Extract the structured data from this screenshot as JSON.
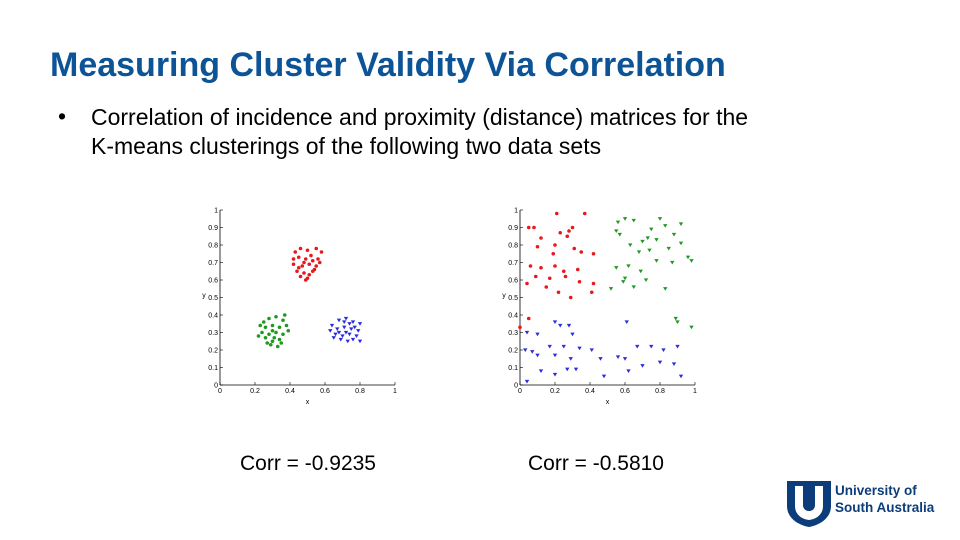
{
  "slide": {
    "title": "Measuring Cluster Validity Via Correlation",
    "bullet_symbol": "•",
    "bullet_lines": [
      "Correlation of incidence and proximity (distance) matrices for the",
      "K-means clusterings of the following two data sets"
    ],
    "corr_left": "Corr = -0.9235",
    "corr_right": "Corr = -0.5810"
  },
  "logo": {
    "line1": "University of",
    "line2": "South Australia",
    "color": "#0d3c7a"
  },
  "chart_data": [
    {
      "type": "scatter",
      "xlabel": "x",
      "ylabel": "y",
      "xlim": [
        0,
        1
      ],
      "ylim": [
        0,
        1
      ],
      "xticks": [
        "0",
        "0.2",
        "0.4",
        "0.6",
        "0.8",
        "1"
      ],
      "yticks": [
        "0",
        "0.1",
        "0.2",
        "0.3",
        "0.4",
        "0.5",
        "0.6",
        "0.7",
        "0.8",
        "0.9",
        "1"
      ],
      "series": [
        {
          "color": "#e8191c",
          "marker": "dot",
          "points": [
            [
              0.43,
              0.76
            ],
            [
              0.46,
              0.78
            ],
            [
              0.5,
              0.77
            ],
            [
              0.55,
              0.78
            ],
            [
              0.58,
              0.76
            ],
            [
              0.45,
              0.73
            ],
            [
              0.49,
              0.72
            ],
            [
              0.52,
              0.74
            ],
            [
              0.56,
              0.72
            ],
            [
              0.42,
              0.69
            ],
            [
              0.47,
              0.68
            ],
            [
              0.51,
              0.69
            ],
            [
              0.55,
              0.68
            ],
            [
              0.44,
              0.65
            ],
            [
              0.48,
              0.64
            ],
            [
              0.53,
              0.65
            ],
            [
              0.46,
              0.62
            ],
            [
              0.5,
              0.61
            ],
            [
              0.42,
              0.72
            ],
            [
              0.57,
              0.7
            ],
            [
              0.48,
              0.7
            ],
            [
              0.53,
              0.71
            ],
            [
              0.45,
              0.67
            ],
            [
              0.51,
              0.63
            ],
            [
              0.49,
              0.6
            ],
            [
              0.54,
              0.66
            ]
          ]
        },
        {
          "color": "#1f9a1f",
          "marker": "dot",
          "points": [
            [
              0.25,
              0.36
            ],
            [
              0.28,
              0.38
            ],
            [
              0.32,
              0.39
            ],
            [
              0.36,
              0.37
            ],
            [
              0.26,
              0.33
            ],
            [
              0.3,
              0.34
            ],
            [
              0.34,
              0.33
            ],
            [
              0.38,
              0.34
            ],
            [
              0.24,
              0.3
            ],
            [
              0.28,
              0.29
            ],
            [
              0.32,
              0.3
            ],
            [
              0.36,
              0.29
            ],
            [
              0.26,
              0.27
            ],
            [
              0.3,
              0.25
            ],
            [
              0.34,
              0.26
            ],
            [
              0.29,
              0.23
            ],
            [
              0.33,
              0.22
            ],
            [
              0.22,
              0.28
            ],
            [
              0.39,
              0.31
            ],
            [
              0.27,
              0.24
            ],
            [
              0.35,
              0.24
            ],
            [
              0.31,
              0.27
            ],
            [
              0.23,
              0.34
            ],
            [
              0.37,
              0.4
            ],
            [
              0.3,
              0.31
            ]
          ]
        },
        {
          "color": "#2c2ce0",
          "marker": "triangle",
          "points": [
            [
              0.64,
              0.34
            ],
            [
              0.68,
              0.37
            ],
            [
              0.72,
              0.38
            ],
            [
              0.76,
              0.36
            ],
            [
              0.8,
              0.35
            ],
            [
              0.63,
              0.31
            ],
            [
              0.67,
              0.32
            ],
            [
              0.71,
              0.33
            ],
            [
              0.75,
              0.32
            ],
            [
              0.79,
              0.31
            ],
            [
              0.66,
              0.29
            ],
            [
              0.7,
              0.28
            ],
            [
              0.74,
              0.29
            ],
            [
              0.78,
              0.28
            ],
            [
              0.69,
              0.26
            ],
            [
              0.73,
              0.25
            ],
            [
              0.8,
              0.25
            ],
            [
              0.65,
              0.27
            ],
            [
              0.77,
              0.33
            ],
            [
              0.71,
              0.36
            ],
            [
              0.74,
              0.35
            ],
            [
              0.68,
              0.3
            ],
            [
              0.76,
              0.26
            ],
            [
              0.72,
              0.3
            ]
          ]
        }
      ]
    },
    {
      "type": "scatter",
      "xlabel": "x",
      "ylabel": "y",
      "xlim": [
        0,
        1
      ],
      "ylim": [
        0,
        1
      ],
      "xticks": [
        "0",
        "0.2",
        "0.4",
        "0.6",
        "0.8",
        "1"
      ],
      "yticks": [
        "0",
        "0.1",
        "0.2",
        "0.3",
        "0.4",
        "0.5",
        "0.6",
        "0.7",
        "0.8",
        "0.9",
        "1"
      ],
      "series": [
        {
          "color": "#e8191c",
          "marker": "dot",
          "points": [
            [
              0.05,
              0.9
            ],
            [
              0.08,
              0.9
            ],
            [
              0.21,
              0.98
            ],
            [
              0.37,
              0.98
            ],
            [
              0.3,
              0.9
            ],
            [
              0.28,
              0.88
            ],
            [
              0.23,
              0.87
            ],
            [
              0.12,
              0.84
            ],
            [
              0.2,
              0.8
            ],
            [
              0.1,
              0.79
            ],
            [
              0.27,
              0.85
            ],
            [
              0.19,
              0.75
            ],
            [
              0.31,
              0.78
            ],
            [
              0.35,
              0.76
            ],
            [
              0.42,
              0.75
            ],
            [
              0.06,
              0.68
            ],
            [
              0.12,
              0.67
            ],
            [
              0.2,
              0.68
            ],
            [
              0.25,
              0.65
            ],
            [
              0.33,
              0.66
            ],
            [
              0.09,
              0.62
            ],
            [
              0.17,
              0.61
            ],
            [
              0.26,
              0.62
            ],
            [
              0.34,
              0.59
            ],
            [
              0.04,
              0.58
            ],
            [
              0.15,
              0.56
            ],
            [
              0.22,
              0.53
            ],
            [
              0.29,
              0.5
            ],
            [
              0.42,
              0.58
            ],
            [
              0.41,
              0.53
            ],
            [
              0.05,
              0.38
            ],
            [
              0.0,
              0.33
            ]
          ]
        },
        {
          "color": "#1f9a1f",
          "marker": "triangle",
          "points": [
            [
              0.56,
              0.93
            ],
            [
              0.6,
              0.95
            ],
            [
              0.65,
              0.94
            ],
            [
              0.8,
              0.95
            ],
            [
              0.92,
              0.92
            ],
            [
              0.83,
              0.91
            ],
            [
              0.88,
              0.86
            ],
            [
              0.75,
              0.89
            ],
            [
              0.55,
              0.88
            ],
            [
              0.57,
              0.86
            ],
            [
              0.73,
              0.84
            ],
            [
              0.78,
              0.83
            ],
            [
              0.7,
              0.82
            ],
            [
              0.92,
              0.81
            ],
            [
              0.85,
              0.78
            ],
            [
              0.63,
              0.8
            ],
            [
              0.68,
              0.76
            ],
            [
              0.74,
              0.77
            ],
            [
              0.96,
              0.73
            ],
            [
              0.98,
              0.71
            ],
            [
              0.87,
              0.7
            ],
            [
              0.78,
              0.71
            ],
            [
              0.62,
              0.68
            ],
            [
              0.55,
              0.67
            ],
            [
              0.69,
              0.65
            ],
            [
              0.6,
              0.61
            ],
            [
              0.72,
              0.6
            ],
            [
              0.65,
              0.56
            ],
            [
              0.52,
              0.55
            ],
            [
              0.83,
              0.55
            ],
            [
              0.59,
              0.59
            ],
            [
              0.89,
              0.38
            ],
            [
              0.98,
              0.33
            ],
            [
              0.9,
              0.36
            ]
          ]
        },
        {
          "color": "#2c2ce0",
          "marker": "triangle",
          "points": [
            [
              0.04,
              0.3
            ],
            [
              0.1,
              0.29
            ],
            [
              0.2,
              0.36
            ],
            [
              0.23,
              0.34
            ],
            [
              0.28,
              0.34
            ],
            [
              0.3,
              0.29
            ],
            [
              0.61,
              0.36
            ],
            [
              0.03,
              0.2
            ],
            [
              0.07,
              0.19
            ],
            [
              0.1,
              0.17
            ],
            [
              0.17,
              0.22
            ],
            [
              0.25,
              0.22
            ],
            [
              0.2,
              0.17
            ],
            [
              0.29,
              0.15
            ],
            [
              0.34,
              0.21
            ],
            [
              0.41,
              0.2
            ],
            [
              0.46,
              0.15
            ],
            [
              0.56,
              0.16
            ],
            [
              0.6,
              0.15
            ],
            [
              0.67,
              0.22
            ],
            [
              0.75,
              0.22
            ],
            [
              0.82,
              0.2
            ],
            [
              0.9,
              0.22
            ],
            [
              0.8,
              0.13
            ],
            [
              0.88,
              0.12
            ],
            [
              0.92,
              0.05
            ],
            [
              0.7,
              0.11
            ],
            [
              0.62,
              0.08
            ],
            [
              0.48,
              0.05
            ],
            [
              0.32,
              0.09
            ],
            [
              0.27,
              0.09
            ],
            [
              0.12,
              0.08
            ],
            [
              0.04,
              0.02
            ],
            [
              0.2,
              0.06
            ]
          ]
        }
      ]
    }
  ]
}
